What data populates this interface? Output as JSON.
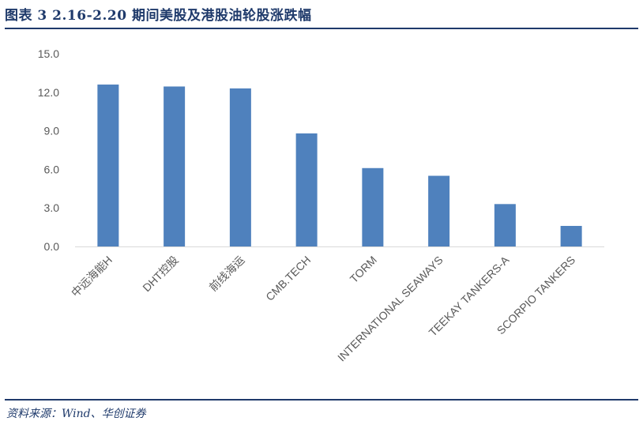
{
  "figure": {
    "title": "图表 3   2.16-2.20 期间美股及港股油轮股涨跌幅",
    "source": "资料来源：Wind、华创证券"
  },
  "chart_data": {
    "type": "bar",
    "categories": [
      "中远海能H",
      "DHT控股",
      "前线海运",
      "CMB.TECH",
      "TORM",
      "INTERNATIONAL SEAWAYS",
      "TEEKAY TANKERS-A",
      "SCORPIO TANKERS"
    ],
    "values": [
      12.6,
      12.45,
      12.3,
      8.8,
      6.1,
      5.5,
      3.3,
      1.6
    ],
    "yticks": [
      "0.0",
      "3.0",
      "6.0",
      "9.0",
      "12.0",
      "15.0"
    ],
    "ylim": [
      0,
      15
    ],
    "grid": false,
    "legend": "none",
    "colors": {
      "bar": "#4f81bd",
      "axis": "#d9d9d9",
      "text": "#595959"
    }
  }
}
